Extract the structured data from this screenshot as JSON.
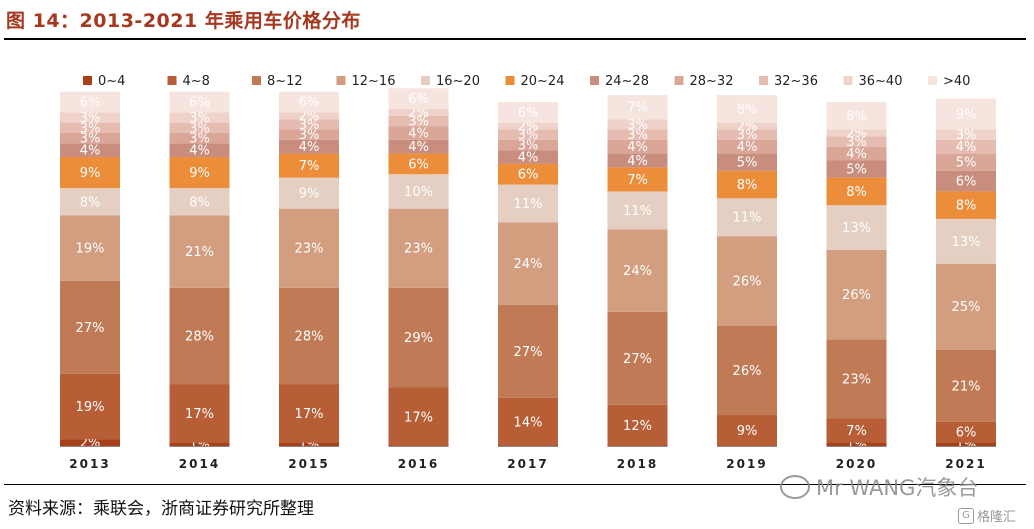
{
  "title": "图 14：2013-2021 年乘用车价格分布",
  "source": "资料来源：乘联会，浙商证券研究所整理",
  "watermark": "Mr WANG汽象台",
  "corner_logo": "格隆汇",
  "chart_data": {
    "type": "bar",
    "stacked": true,
    "categories": [
      "2013",
      "2014",
      "2015",
      "2016",
      "2017",
      "2018",
      "2019",
      "2020",
      "2021"
    ],
    "ylim": [
      0,
      100
    ],
    "legend_position": "top",
    "series": [
      {
        "name": "0~4",
        "color": "#a8401a",
        "values": [
          2,
          1,
          1,
          0,
          0,
          0,
          0,
          1,
          1
        ]
      },
      {
        "name": "4~8",
        "color": "#b85e37",
        "values": [
          19,
          17,
          17,
          17,
          14,
          12,
          9,
          7,
          6
        ]
      },
      {
        "name": "8~12",
        "color": "#c17a56",
        "values": [
          27,
          28,
          28,
          29,
          27,
          27,
          26,
          23,
          21
        ]
      },
      {
        "name": "12~16",
        "color": "#d39e80",
        "values": [
          19,
          21,
          23,
          23,
          24,
          24,
          26,
          26,
          25
        ]
      },
      {
        "name": "16~20",
        "color": "#e4cfc2",
        "values": [
          8,
          8,
          9,
          10,
          11,
          11,
          11,
          13,
          13
        ]
      },
      {
        "name": "20~24",
        "color": "#ec8d3a",
        "values": [
          9,
          9,
          7,
          6,
          6,
          7,
          8,
          8,
          8
        ]
      },
      {
        "name": "24~28",
        "color": "#c98d7e",
        "values": [
          4,
          4,
          4,
          4,
          4,
          4,
          5,
          5,
          6
        ]
      },
      {
        "name": "28~32",
        "color": "#d9a697",
        "values": [
          3,
          3,
          3,
          4,
          3,
          4,
          4,
          4,
          5
        ]
      },
      {
        "name": "32~36",
        "color": "#e6bcb0",
        "values": [
          3,
          3,
          3,
          3,
          3,
          3,
          3,
          3,
          4
        ]
      },
      {
        "name": "36~40",
        "color": "#efd2ca",
        "values": [
          3,
          3,
          2,
          2,
          2,
          3,
          2,
          2,
          3
        ]
      },
      {
        "name": ">40",
        "color": "#f6e4df",
        "values": [
          6,
          6,
          6,
          6,
          6,
          7,
          8,
          8,
          9
        ]
      }
    ],
    "data_labels": true,
    "label_format": "{v}%"
  }
}
